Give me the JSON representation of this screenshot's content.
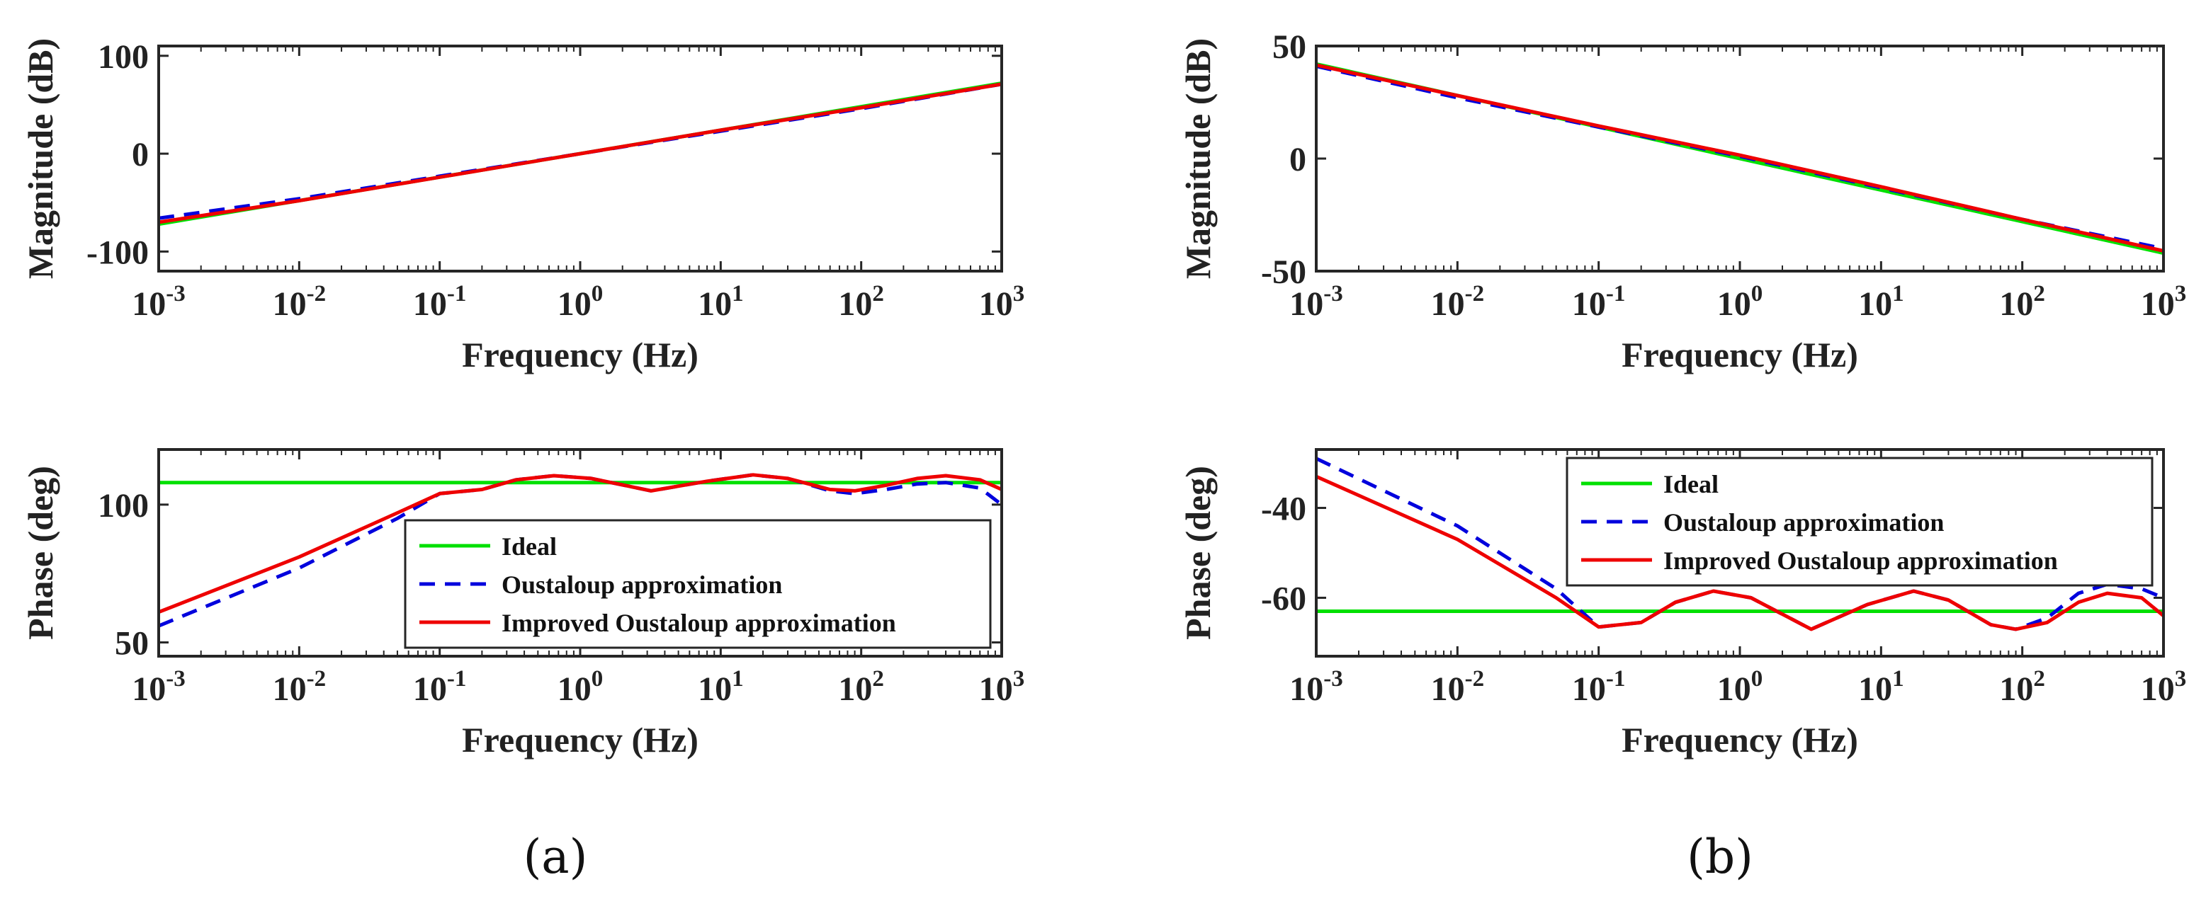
{
  "figure": {
    "captions": [
      "(a)",
      "(b)"
    ]
  },
  "colors": {
    "ideal": "#00e000",
    "oustaloup": "#0000dd",
    "improved": "#ee0000",
    "axis": "#262626"
  },
  "chart_data": [
    {
      "id": "a-magnitude",
      "type": "line",
      "xscale": "log",
      "xlim": [
        0.001,
        1000
      ],
      "ylim": [
        -120,
        110
      ],
      "xlabel": "Frequency (Hz)",
      "ylabel": "Magnitude (dB)",
      "xtick_exponents": [
        "-3",
        "-2",
        "-1",
        "0",
        "1",
        "2",
        "3"
      ],
      "yticks": [
        {
          "value": -100,
          "label": "-100"
        },
        {
          "value": 0,
          "label": "0"
        },
        {
          "value": 100,
          "label": "100"
        }
      ],
      "legend": null,
      "series": [
        {
          "name": "Ideal",
          "style": "solid",
          "color": "#00e000",
          "x": [
            0.001,
            1000
          ],
          "y": [
            -72,
            72
          ]
        },
        {
          "name": "Oustaloup approximation",
          "style": "dashed",
          "color": "#0000dd",
          "x": [
            0.001,
            0.01,
            0.1,
            1,
            10,
            100,
            1000
          ],
          "y": [
            -66,
            -46,
            -23,
            0,
            23,
            46,
            71
          ]
        },
        {
          "name": "Improved Oustaloup approximation",
          "style": "solid",
          "color": "#ee0000",
          "x": [
            0.001,
            0.01,
            0.1,
            1,
            10,
            100,
            1000
          ],
          "y": [
            -70,
            -48,
            -24,
            0,
            24,
            47,
            71
          ]
        }
      ]
    },
    {
      "id": "a-phase",
      "type": "line",
      "xscale": "log",
      "xlim": [
        0.001,
        1000
      ],
      "ylim": [
        45,
        120
      ],
      "xlabel": "Frequency (Hz)",
      "ylabel": "Phase (deg)",
      "xtick_exponents": [
        "-3",
        "-2",
        "-1",
        "0",
        "1",
        "2",
        "3"
      ],
      "yticks": [
        {
          "value": 50,
          "label": "50"
        },
        {
          "value": 100,
          "label": "100"
        }
      ],
      "legend": {
        "position": "bottom-right",
        "entries": [
          "Ideal",
          "Oustaloup approximation",
          "Improved Oustaloup approximation"
        ]
      },
      "series": [
        {
          "name": "Ideal",
          "style": "solid",
          "color": "#00e000",
          "x": [
            0.001,
            1000
          ],
          "y": [
            108,
            108
          ]
        },
        {
          "name": "Oustaloup approximation",
          "style": "dashed",
          "color": "#0000dd",
          "x": [
            0.001,
            0.01,
            0.05,
            0.1,
            0.2,
            0.35,
            0.65,
            1.2,
            3.2,
            8,
            17,
            30,
            60,
            90,
            150,
            250,
            400,
            700,
            1000
          ],
          "y": [
            56,
            77,
            95,
            104,
            105.5,
            109,
            110.5,
            109.5,
            105,
            108.5,
            110.8,
            109.5,
            105,
            104,
            105.5,
            107.5,
            108,
            106,
            100
          ]
        },
        {
          "name": "Improved Oustaloup approximation",
          "style": "solid",
          "color": "#ee0000",
          "x": [
            0.001,
            0.01,
            0.05,
            0.1,
            0.2,
            0.35,
            0.65,
            1.2,
            3.2,
            8,
            17,
            30,
            60,
            90,
            150,
            250,
            400,
            700,
            1000
          ],
          "y": [
            61,
            81,
            97,
            104,
            105.5,
            109,
            110.5,
            109.5,
            105,
            108.5,
            110.8,
            109.5,
            105.5,
            105,
            107,
            109.5,
            110.5,
            109,
            105.5
          ]
        }
      ]
    },
    {
      "id": "b-magnitude",
      "type": "line",
      "xscale": "log",
      "xlim": [
        0.001,
        1000
      ],
      "ylim": [
        -50,
        50
      ],
      "xlabel": "Frequency (Hz)",
      "ylabel": "Magnitude (dB)",
      "xtick_exponents": [
        "-3",
        "-2",
        "-1",
        "0",
        "1",
        "2",
        "3"
      ],
      "yticks": [
        {
          "value": -50,
          "label": "-50"
        },
        {
          "value": 0,
          "label": "0"
        },
        {
          "value": 50,
          "label": "50"
        }
      ],
      "legend": null,
      "series": [
        {
          "name": "Ideal",
          "style": "solid",
          "color": "#00e000",
          "x": [
            0.001,
            1000
          ],
          "y": [
            42,
            -42
          ]
        },
        {
          "name": "Oustaloup approximation",
          "style": "dashed",
          "color": "#0000dd",
          "x": [
            0.001,
            0.01,
            0.1,
            1,
            10,
            100,
            1000
          ],
          "y": [
            41,
            27,
            14,
            1,
            -13,
            -27,
            -40
          ]
        },
        {
          "name": "Improved Oustaloup approximation",
          "style": "solid",
          "color": "#ee0000",
          "x": [
            0.001,
            0.01,
            0.1,
            1,
            10,
            100,
            1000
          ],
          "y": [
            41.5,
            28,
            14.5,
            1.5,
            -12.5,
            -27,
            -41
          ]
        }
      ]
    },
    {
      "id": "b-phase",
      "type": "line",
      "xscale": "log",
      "xlim": [
        0.001,
        1000
      ],
      "ylim": [
        -73,
        -27
      ],
      "xlabel": "Frequency (Hz)",
      "ylabel": "Phase (deg)",
      "xtick_exponents": [
        "-3",
        "-2",
        "-1",
        "0",
        "1",
        "2",
        "3"
      ],
      "yticks": [
        {
          "value": -40,
          "label": "-40"
        },
        {
          "value": -60,
          "label": "-60"
        }
      ],
      "legend": {
        "position": "top-right",
        "entries": [
          "Ideal",
          "Oustaloup approximation",
          "Improved Oustaloup approximation"
        ]
      },
      "series": [
        {
          "name": "Ideal",
          "style": "solid",
          "color": "#00e000",
          "x": [
            0.001,
            1000
          ],
          "y": [
            -63,
            -63
          ]
        },
        {
          "name": "Oustaloup approximation",
          "style": "dashed",
          "color": "#0000dd",
          "x": [
            0.001,
            0.01,
            0.05,
            0.1,
            0.2,
            0.35,
            0.65,
            1.2,
            3.2,
            8,
            17,
            30,
            60,
            90,
            150,
            250,
            400,
            700,
            1000
          ],
          "y": [
            -29,
            -44,
            -58,
            -66.5,
            -65.5,
            -61,
            -58.5,
            -60,
            -67,
            -61.5,
            -58.5,
            -60.5,
            -66,
            -67,
            -64.5,
            -59,
            -57,
            -58,
            -60
          ]
        },
        {
          "name": "Improved Oustaloup approximation",
          "style": "solid",
          "color": "#ee0000",
          "x": [
            0.001,
            0.01,
            0.05,
            0.1,
            0.2,
            0.35,
            0.65,
            1.2,
            3.2,
            8,
            17,
            30,
            60,
            90,
            150,
            250,
            400,
            700,
            1000
          ],
          "y": [
            -33,
            -47,
            -60,
            -66.5,
            -65.5,
            -61,
            -58.5,
            -60,
            -67,
            -61.5,
            -58.5,
            -60.5,
            -66,
            -67,
            -65.5,
            -61,
            -59,
            -60,
            -64
          ]
        }
      ]
    }
  ]
}
